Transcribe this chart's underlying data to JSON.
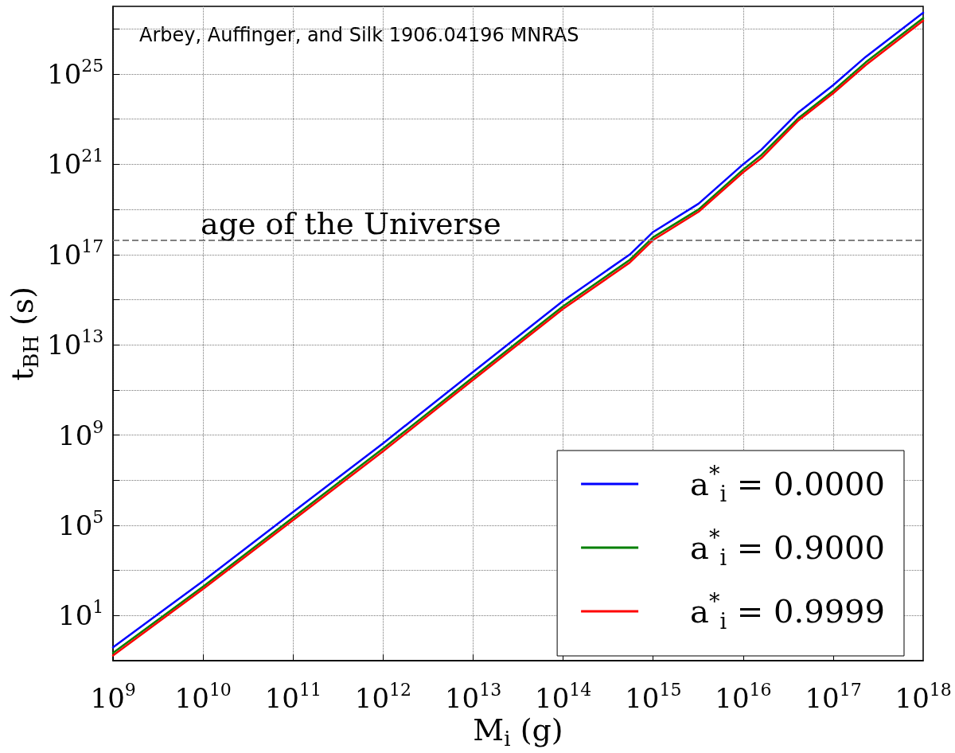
{
  "chart_data": {
    "type": "line",
    "xlabel": "M$_{i}$ (g)",
    "ylabel": "t$_{BH}$ (s)",
    "annotations": [
      "Arbey, Auffinger, and Silk 1906.04196 MNRAS"
    ],
    "x": [
      1000000000.0,
      10000000000.0,
      100000000000.0,
      1000000000000.0,
      10000000000000.0,
      100000000000000.0,
      550000000000000.0,
      1000000000000000.0,
      3200000000000000.0,
      1e+16,
      1.6e+16,
      4.1e+16,
      1e+17,
      2.3e+17,
      1e+18
    ],
    "series": [
      {
        "name": "a$^{*}$$_{i}$ = 0.0000",
        "color": "#0000ff",
        "values": [
          0.39,
          340.0,
          390000.0,
          430000000.0,
          630000000000.0,
          890000000000000.0,
          1e+17,
          1e+18,
          1.8e+19,
          1e+21,
          4.5e+21,
          2e+23,
          3.2e+24,
          5.8e+25,
          5.2e+27
        ]
      },
      {
        "name": "a$^{*}$$_{i}$ = 0.9000",
        "color": "#008000",
        "values": [
          0.22,
          190.0,
          220000.0,
          250000000.0,
          360000000000.0,
          510000000000000.0,
          5.8e+16,
          5.8e+17,
          1e+19,
          5.8e+20,
          2.6e+21,
          1.1e+23,
          1.8e+24,
          3.3e+25,
          3e+27
        ]
      },
      {
        "name": "a$^{*}$$_{i}$ = 0.9999",
        "color": "#ff0000",
        "values": [
          0.17,
          150.0,
          170000.0,
          190000000.0,
          280000000000.0,
          390000000000000.0,
          4.4e+16,
          4.4e+17,
          7.9e+18,
          4.4e+20,
          1.9e+21,
          8.7e+22,
          1.4e+24,
          2.5e+25,
          2.3e+27
        ]
      }
    ],
    "log": "xy",
    "xlim": [
      1000000000.0,
      1e+18
    ],
    "xticks": [
      {
        "value": 1000000000.0,
        "label": "10$^{9}$"
      },
      {
        "value": 10000000000.0,
        "label": "10$^{10}$"
      },
      {
        "value": 100000000000.0,
        "label": "10$^{11}$"
      },
      {
        "value": 1000000000000.0,
        "label": "10$^{12}$"
      },
      {
        "value": 10000000000000.0,
        "label": "10$^{13}$"
      },
      {
        "value": 100000000000000.0,
        "label": "10$^{14}$"
      },
      {
        "value": 1000000000000000.0,
        "label": "10$^{15}$"
      },
      {
        "value": 1e+16,
        "label": "10$^{16}$"
      },
      {
        "value": 1e+17,
        "label": "10$^{17}$"
      },
      {
        "value": 1e+18,
        "label": "10$^{18}$"
      }
    ],
    "ylim": [
      0.1,
      1e+28
    ],
    "yticks": [
      {
        "value": 10,
        "label": "10$^{1}$"
      },
      {
        "value": 1000.0,
        "label": null
      },
      {
        "value": 100000.0,
        "label": "10$^{5}$"
      },
      {
        "value": 10000000.0,
        "label": null
      },
      {
        "value": 1000000000.0,
        "label": "10$^{9}$"
      },
      {
        "value": 100000000000.0,
        "label": null
      },
      {
        "value": 10000000000000.0,
        "label": "10$^{13}$"
      },
      {
        "value": 1000000000000000.0,
        "label": null
      },
      {
        "value": 1e+17,
        "label": "10$^{17}$"
      },
      {
        "value": 1e+19,
        "label": null
      },
      {
        "value": 1e+21,
        "label": "10$^{21}$"
      },
      {
        "value": 1e+23,
        "label": null
      },
      {
        "value": 1e+25,
        "label": "10$^{25}$"
      },
      {
        "value": 1e+27,
        "label": null
      }
    ],
    "ref_lines": [
      {
        "axis": "y",
        "value": 4.4e+17,
        "label": "age of the Universe",
        "color": "#808080",
        "line_style": "dashed"
      }
    ],
    "grid": true,
    "legend": "bottom right",
    "marker": "none",
    "line_style": "solid"
  }
}
